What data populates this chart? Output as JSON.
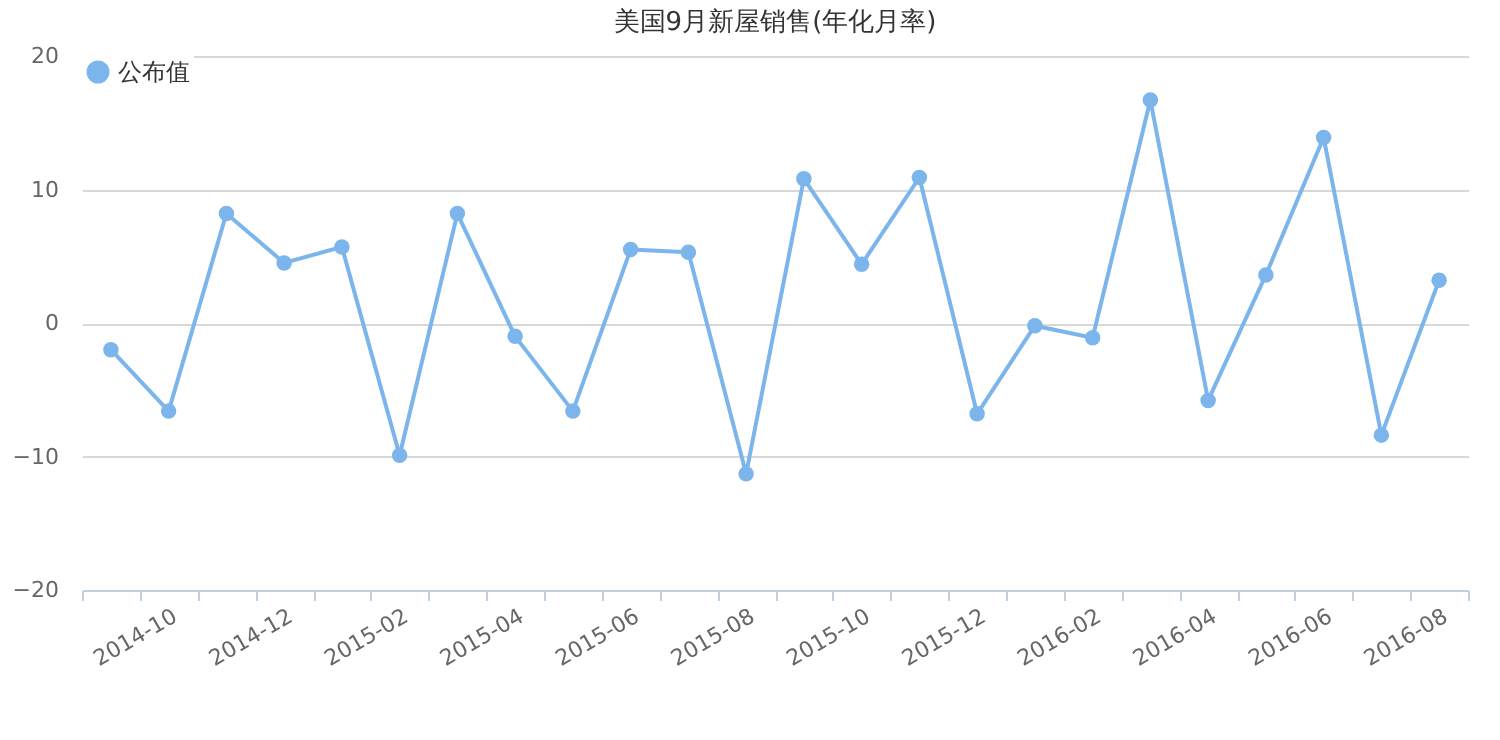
{
  "chart_data": {
    "type": "line",
    "title": "美国9月新屋销售(年化月率)",
    "categories": [
      null,
      "2014-10",
      null,
      "2014-12",
      null,
      "2015-02",
      null,
      "2015-04",
      null,
      "2015-06",
      null,
      "2015-08",
      null,
      "2015-10",
      null,
      "2015-12",
      null,
      "2016-02",
      null,
      "2016-04",
      null,
      "2016-06",
      null,
      "2016-08"
    ],
    "series": [
      {
        "name": "公布值",
        "color": "#7cb5ec",
        "values": [
          -2.0,
          -6.6,
          8.2,
          4.5,
          5.7,
          -9.9,
          8.2,
          -1.0,
          -6.6,
          5.5,
          5.3,
          -11.3,
          10.8,
          4.4,
          10.9,
          -6.8,
          -0.2,
          -1.1,
          16.7,
          -5.8,
          3.6,
          13.9,
          -8.4,
          3.2
        ]
      }
    ],
    "ylim": [
      -20,
      20
    ],
    "yticks": [
      -20,
      -10,
      0,
      10,
      20
    ],
    "grid": "y",
    "legend": "top left",
    "marker": "circle"
  }
}
